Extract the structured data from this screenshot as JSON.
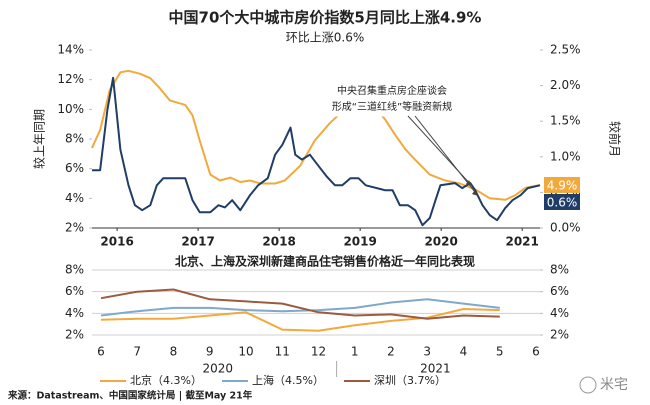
{
  "chart_data": [
    {
      "type": "line",
      "title": "中国70个大中城市房价指数5月同比上涨4.9%",
      "subtitle": "环比上涨0.6%",
      "ylabel": "较上年同期",
      "y2label": "较前月",
      "xlim": [
        2015.69,
        2021.22
      ],
      "xticks": [
        2016,
        2017,
        2018,
        2019,
        2020,
        2021
      ],
      "ylim": [
        2,
        14
      ],
      "yticks": [
        {
          "value": 2,
          "label": "2%"
        },
        {
          "value": 4,
          "label": "4%"
        },
        {
          "value": 6,
          "label": "6%"
        },
        {
          "value": 8,
          "label": "8%"
        },
        {
          "value": 10,
          "label": "10%"
        },
        {
          "value": 12,
          "label": "12%"
        },
        {
          "value": 14,
          "label": "14%"
        }
      ],
      "y2lim": [
        0,
        2.5
      ],
      "y2ticks": [
        {
          "value": 0,
          "label": "0.0%"
        },
        {
          "value": 0.5,
          "label": "0.5%"
        },
        {
          "value": 1,
          "label": "1.0%"
        },
        {
          "value": 1.5,
          "label": "1.5%"
        },
        {
          "value": 2,
          "label": "2.0%"
        },
        {
          "value": 2.5,
          "label": "2.5%"
        }
      ],
      "annotation": [
        "中央召集重点房企座谈会",
        "形成“三道红线”等融资新规"
      ],
      "series": [
        {
          "color": "#f2a93b",
          "x": [
            2015.69,
            2015.79,
            2015.91,
            2016.04,
            2016.14,
            2016.28,
            2016.41,
            2016.53,
            2016.65,
            2016.84,
            2016.93,
            2017.02,
            2017.15,
            2017.27,
            2017.4,
            2017.52,
            2017.64,
            2017.77,
            2017.95,
            2018.07,
            2018.26,
            2018.44,
            2018.63,
            2018.81,
            2019.0,
            2019.19,
            2019.31,
            2019.43,
            2019.56,
            2019.68,
            2019.86,
            2020.05,
            2020.23,
            2020.42,
            2020.6,
            2020.79,
            2020.91,
            2021.04,
            2021.22
          ],
          "values": [
            7.4,
            8.6,
            11.3,
            12.5,
            12.6,
            12.4,
            12.1,
            11.4,
            10.6,
            10.3,
            9.6,
            7.9,
            5.6,
            5.2,
            5.4,
            5.1,
            5.2,
            5.0,
            5.0,
            5.2,
            6.2,
            7.9,
            9.1,
            10.0,
            10.4,
            10.1,
            9.3,
            8.3,
            7.3,
            6.6,
            5.6,
            5.2,
            5.0,
            4.6,
            4.0,
            3.9,
            4.2,
            4.7,
            4.9
          ],
          "value_labels": [
            null,
            null,
            null,
            null,
            null,
            null,
            null,
            null,
            null,
            null,
            null,
            null,
            null,
            null,
            null,
            null,
            null,
            null,
            null,
            null,
            null,
            null,
            null,
            null,
            null,
            null,
            null,
            null,
            null,
            null,
            null,
            null,
            null,
            null,
            null,
            null,
            null,
            null,
            "4.9%"
          ]
        },
        {
          "color": "#1f3d66",
          "axis": "y2",
          "x": [
            2015.69,
            2015.79,
            2015.88,
            2015.95,
            2016.04,
            2016.14,
            2016.22,
            2016.31,
            2016.41,
            2016.49,
            2016.57,
            2016.84,
            2016.93,
            2017.02,
            2017.15,
            2017.25,
            2017.33,
            2017.42,
            2017.52,
            2017.64,
            2017.74,
            2017.86,
            2017.95,
            2018.04,
            2018.14,
            2018.2,
            2018.28,
            2018.38,
            2018.48,
            2018.59,
            2018.69,
            2018.78,
            2018.88,
            2018.98,
            2019.07,
            2019.31,
            2019.4,
            2019.49,
            2019.59,
            2019.68,
            2019.77,
            2019.86,
            2019.93,
            2019.99,
            2020.17,
            2020.26,
            2020.36,
            2020.42,
            2020.51,
            2020.6,
            2020.69,
            2020.79,
            2020.88,
            2020.98,
            2021.07,
            2021.22
          ],
          "values": [
            0.81,
            0.81,
            1.66,
            2.11,
            1.1,
            0.6,
            0.32,
            0.25,
            0.32,
            0.6,
            0.7,
            0.7,
            0.39,
            0.22,
            0.22,
            0.32,
            0.29,
            0.39,
            0.25,
            0.46,
            0.6,
            0.7,
            1.03,
            1.17,
            1.41,
            1.03,
            0.96,
            1.03,
            0.88,
            0.72,
            0.6,
            0.6,
            0.7,
            0.7,
            0.6,
            0.53,
            0.53,
            0.32,
            0.32,
            0.25,
            0.04,
            0.14,
            0.39,
            0.6,
            0.63,
            0.56,
            0.63,
            0.53,
            0.32,
            0.18,
            0.11,
            0.28,
            0.39,
            0.46,
            0.56,
            0.6
          ],
          "value_labels": [
            null,
            null,
            null,
            null,
            null,
            null,
            null,
            null,
            null,
            null,
            null,
            null,
            null,
            null,
            null,
            null,
            null,
            null,
            null,
            null,
            null,
            null,
            null,
            null,
            null,
            null,
            null,
            null,
            null,
            null,
            null,
            null,
            null,
            null,
            null,
            null,
            null,
            null,
            null,
            null,
            null,
            null,
            null,
            null,
            null,
            null,
            null,
            null,
            null,
            null,
            null,
            null,
            null,
            null,
            null,
            "0.6%"
          ]
        }
      ]
    },
    {
      "type": "line",
      "title": "北京、上海及深圳新建商品住宅销售价格近一年同比表现",
      "categories": [
        "6",
        "7",
        "8",
        "9",
        "10",
        "11",
        "12",
        "1",
        "2",
        "3",
        "4",
        "5",
        "6"
      ],
      "year_labels": [
        "2020",
        "2021"
      ],
      "ylim": [
        2,
        8
      ],
      "yticks": [
        {
          "value": 2,
          "label": "2%"
        },
        {
          "value": 4,
          "label": "4%"
        },
        {
          "value": 6,
          "label": "6%"
        },
        {
          "value": 8,
          "label": "8%"
        }
      ],
      "y2lim": [
        2,
        8
      ],
      "y2ticks": [
        {
          "value": 2,
          "label": "2%"
        },
        {
          "value": 4,
          "label": "4%"
        },
        {
          "value": 6,
          "label": "6%"
        },
        {
          "value": 8,
          "label": "8%"
        }
      ],
      "grid": true,
      "series": [
        {
          "name": "北京（4.3%）",
          "color": "#f2a93b",
          "values": [
            3.4,
            3.5,
            3.5,
            3.8,
            4.1,
            2.5,
            2.4,
            2.9,
            3.3,
            3.6,
            4.4,
            4.3,
            null
          ]
        },
        {
          "name": "上海（4.5%）",
          "color": "#7ea9cc",
          "values": [
            3.8,
            4.2,
            4.5,
            4.5,
            4.3,
            4.2,
            4.3,
            4.5,
            5.0,
            5.3,
            4.9,
            4.5,
            null
          ]
        },
        {
          "name": "深圳（3.7%）",
          "color": "#9c5b3e",
          "values": [
            5.4,
            6.0,
            6.2,
            5.3,
            5.1,
            4.9,
            4.1,
            3.8,
            3.9,
            3.5,
            3.8,
            3.7,
            null
          ]
        }
      ]
    }
  ],
  "source": "来源：Datastream、中国国家统计局 | 截至May 21年",
  "watermark": "米宅"
}
